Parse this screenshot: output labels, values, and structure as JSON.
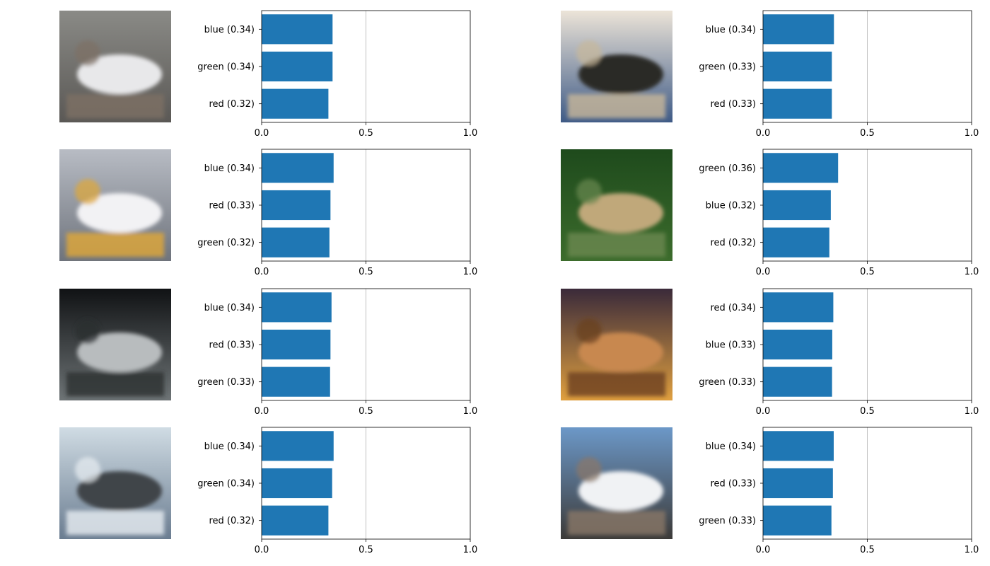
{
  "colors": {
    "bar": "#1f77b4",
    "axis": "#000000",
    "grid": "#b0b0b0",
    "background": "#ffffff"
  },
  "x_ticks": [
    "0.0",
    "0.5",
    "1.0"
  ],
  "panels": [
    {
      "image_name": "horse-photo",
      "image_palette": [
        "#8a8a86",
        "#e8e8ea",
        "#5a5855",
        "#7d6f64"
      ]
    },
    {
      "image_name": "ship-photo",
      "image_palette": [
        "#ece4d8",
        "#2c2a26",
        "#3e5a86",
        "#c8b89a"
      ]
    },
    {
      "image_name": "airplane-photo",
      "image_palette": [
        "#b8bcc4",
        "#f2f2f4",
        "#6e737c",
        "#e0a838"
      ]
    },
    {
      "image_name": "frog-photo",
      "image_palette": [
        "#1e4a1c",
        "#c0a87a",
        "#3c6c2c",
        "#6a8850"
      ]
    },
    {
      "image_name": "car-photo",
      "image_palette": [
        "#101214",
        "#b8bcbe",
        "#6e7476",
        "#2a2e30"
      ]
    },
    {
      "image_name": "frog-photo",
      "image_palette": [
        "#3a2a3a",
        "#c88850",
        "#e0a040",
        "#6a4020"
      ]
    },
    {
      "image_name": "ship-photo",
      "image_palette": [
        "#d0dce4",
        "#404448",
        "#6a7c90",
        "#e8eef2"
      ]
    },
    {
      "image_name": "airplane-photo",
      "image_palette": [
        "#6c98c8",
        "#f0f2f4",
        "#3c3a38",
        "#8a7868"
      ]
    }
  ],
  "chart_data": [
    {
      "type": "bar",
      "orientation": "horizontal",
      "xlim": [
        0,
        1
      ],
      "x_ticks": [
        0.0,
        0.5,
        1.0
      ],
      "grid": "x-major at 0.5",
      "categories": [
        "blue (0.34)",
        "green (0.34)",
        "red (0.32)"
      ],
      "values": [
        0.34,
        0.34,
        0.32
      ]
    },
    {
      "type": "bar",
      "orientation": "horizontal",
      "xlim": [
        0,
        1
      ],
      "x_ticks": [
        0.0,
        0.5,
        1.0
      ],
      "grid": "x-major at 0.5",
      "categories": [
        "blue (0.34)",
        "green (0.33)",
        "red (0.33)"
      ],
      "values": [
        0.34,
        0.33,
        0.33
      ]
    },
    {
      "type": "bar",
      "orientation": "horizontal",
      "xlim": [
        0,
        1
      ],
      "x_ticks": [
        0.0,
        0.5,
        1.0
      ],
      "grid": "x-major at 0.5",
      "categories": [
        "blue (0.34)",
        "red (0.33)",
        "green (0.32)"
      ],
      "values": [
        0.345,
        0.33,
        0.325
      ]
    },
    {
      "type": "bar",
      "orientation": "horizontal",
      "xlim": [
        0,
        1
      ],
      "x_ticks": [
        0.0,
        0.5,
        1.0
      ],
      "grid": "x-major at 0.5",
      "categories": [
        "green (0.36)",
        "blue (0.32)",
        "red (0.32)"
      ],
      "values": [
        0.36,
        0.325,
        0.318
      ]
    },
    {
      "type": "bar",
      "orientation": "horizontal",
      "xlim": [
        0,
        1
      ],
      "x_ticks": [
        0.0,
        0.5,
        1.0
      ],
      "grid": "x-major at 0.5",
      "categories": [
        "blue (0.34)",
        "red (0.33)",
        "green (0.33)"
      ],
      "values": [
        0.335,
        0.33,
        0.328
      ]
    },
    {
      "type": "bar",
      "orientation": "horizontal",
      "xlim": [
        0,
        1
      ],
      "x_ticks": [
        0.0,
        0.5,
        1.0
      ],
      "grid": "x-major at 0.5",
      "categories": [
        "red (0.34)",
        "blue (0.33)",
        "green (0.33)"
      ],
      "values": [
        0.337,
        0.332,
        0.331
      ]
    },
    {
      "type": "bar",
      "orientation": "horizontal",
      "xlim": [
        0,
        1
      ],
      "x_ticks": [
        0.0,
        0.5,
        1.0
      ],
      "grid": "x-major at 0.5",
      "categories": [
        "blue (0.34)",
        "green (0.34)",
        "red (0.32)"
      ],
      "values": [
        0.345,
        0.338,
        0.32
      ]
    },
    {
      "type": "bar",
      "orientation": "horizontal",
      "xlim": [
        0,
        1
      ],
      "x_ticks": [
        0.0,
        0.5,
        1.0
      ],
      "grid": "x-major at 0.5",
      "categories": [
        "blue (0.34)",
        "red (0.33)",
        "green (0.33)"
      ],
      "values": [
        0.339,
        0.335,
        0.328
      ]
    }
  ]
}
